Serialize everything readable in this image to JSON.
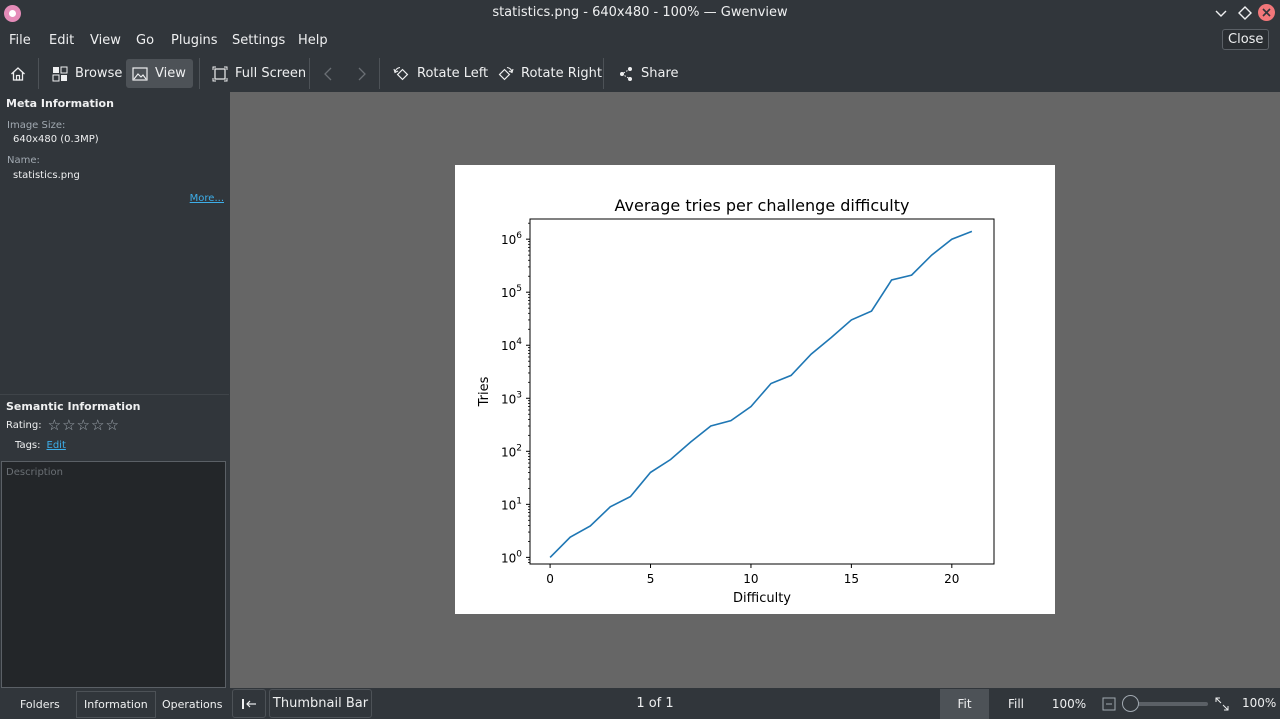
{
  "window": {
    "title": "statistics.png - 640x480 - 100% — Gwenview",
    "close_tooltip": "Close"
  },
  "menu": [
    "File",
    "Edit",
    "View",
    "Go",
    "Plugins",
    "Settings",
    "Help"
  ],
  "toolbar": {
    "browse": "Browse",
    "view": "View",
    "full_screen": "Full Screen",
    "rotate_left": "Rotate Left",
    "rotate_right": "Rotate Right",
    "share": "Share"
  },
  "sidebar": {
    "meta_title": "Meta Information",
    "image_size_label": "Image Size:",
    "image_size_value": "640x480 (0.3MP)",
    "name_label": "Name:",
    "name_value": "statistics.png",
    "more_link": "More...",
    "semantic_title": "Semantic Information",
    "rating_label": "Rating:",
    "rating_value": 0,
    "rating_max": 5,
    "tags_label": "Tags:",
    "tags_edit": "Edit",
    "description_placeholder": "Description"
  },
  "chart_data": {
    "type": "line",
    "title": "Average tries per challenge difficulty",
    "xlabel": "Difficulty",
    "ylabel": "Tries",
    "y_scale": "log",
    "xlim": [
      -1,
      22.1
    ],
    "ylim": [
      0.75,
      2400000
    ],
    "x_ticks": [
      0,
      5,
      10,
      15,
      20
    ],
    "y_ticks": [
      "10^0",
      "10^1",
      "10^2",
      "10^3",
      "10^4",
      "10^5",
      "10^6"
    ],
    "x": [
      0,
      1,
      2,
      3,
      4,
      5,
      6,
      7,
      8,
      9,
      10,
      11,
      12,
      13,
      14,
      15,
      16,
      17,
      18,
      19,
      20,
      21
    ],
    "y": [
      1,
      2.4,
      3.9,
      9,
      14,
      40,
      70,
      150,
      300,
      380,
      700,
      1900,
      2700,
      6800,
      14000,
      30000,
      44000,
      170000,
      210000,
      500000,
      1000000,
      1400000
    ],
    "line_color": "#1f77b4",
    "grid": false
  },
  "bottom": {
    "tabs": [
      "Folders",
      "Information",
      "Operations"
    ],
    "thumbnail_bar": "Thumbnail Bar",
    "page_count": "1 of 1",
    "fit": "Fit",
    "fill": "Fill",
    "zoom_100": "100%",
    "zoom_pct": "100%"
  }
}
